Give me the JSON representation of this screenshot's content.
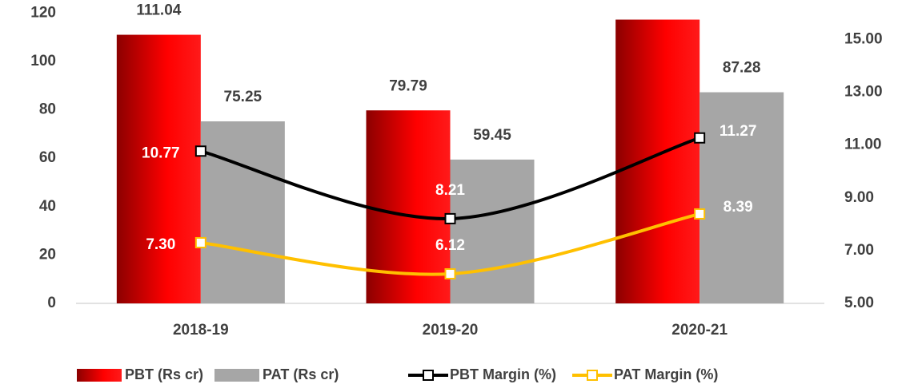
{
  "chart_data": {
    "type": "bar",
    "categories": [
      "2018-19",
      "2019-20",
      "2020-21"
    ],
    "series": [
      {
        "name": "PBT (Rs cr)",
        "color": "#ff0000",
        "values": [
          111.04,
          79.79,
          117.31
        ]
      },
      {
        "name": "PAT (Rs cr)",
        "color": "#a6a6a6",
        "values": [
          75.25,
          59.45,
          87.28
        ]
      },
      {
        "name": "PBT Margin (%)",
        "color": "#000000",
        "type": "line",
        "axis": "y2",
        "values": [
          10.77,
          8.21,
          11.27
        ]
      },
      {
        "name": "PAT Margin (%)",
        "color": "#ffc000",
        "type": "line",
        "axis": "y2",
        "values": [
          7.3,
          6.12,
          8.39
        ],
        "value_labels": [
          "7.30",
          "6.12",
          "8.39"
        ]
      }
    ],
    "ylim": [
      0,
      120
    ],
    "yticks": [
      0,
      20,
      40,
      60,
      80,
      100,
      120
    ],
    "y2lim": [
      5,
      16
    ],
    "y2ticks": [
      {
        "value": 5,
        "label": "5.00"
      },
      {
        "value": 7,
        "label": "7.00"
      },
      {
        "value": 9,
        "label": "9.00"
      },
      {
        "value": 11,
        "label": "11.00"
      },
      {
        "value": 13,
        "label": "13.00"
      },
      {
        "value": 15,
        "label": "15.00"
      }
    ],
    "legend": "bottom"
  }
}
